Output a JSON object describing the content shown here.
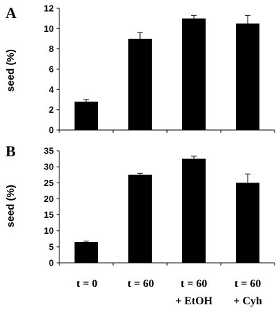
{
  "panels": [
    {
      "letter": "A",
      "ylabel": "seed (%)"
    },
    {
      "letter": "B",
      "ylabel": "seed (%)"
    }
  ],
  "categories": [
    {
      "line1": "t = 0",
      "line2": ""
    },
    {
      "line1": "t = 60",
      "line2": ""
    },
    {
      "line1": "t = 60",
      "line2": "+ EtOH"
    },
    {
      "line1": "t = 60",
      "line2": "+ Cyh"
    }
  ],
  "colors": {
    "bar": "#000000",
    "axis": "#000000",
    "background": "#ffffff"
  },
  "chart_data": [
    {
      "type": "bar",
      "panel": "A",
      "categories": [
        "t = 0",
        "t = 60",
        "t = 60 + EtOH",
        "t = 60 + Cyh"
      ],
      "values": [
        2.8,
        9.0,
        11.0,
        10.5
      ],
      "errors": [
        0.2,
        0.6,
        0.3,
        0.8
      ],
      "ylabel": "seed (%)",
      "xlabel": "",
      "ylim": [
        0,
        12
      ],
      "yticks": [
        0,
        2,
        4,
        6,
        8,
        10,
        12
      ],
      "grid": false,
      "legend": "none"
    },
    {
      "type": "bar",
      "panel": "B",
      "categories": [
        "t = 0",
        "t = 60",
        "t = 60 + EtOH",
        "t = 60 + Cyh"
      ],
      "values": [
        6.5,
        27.5,
        32.5,
        25.0
      ],
      "errors": [
        0.3,
        0.5,
        0.8,
        2.7
      ],
      "ylabel": "seed (%)",
      "xlabel": "",
      "ylim": [
        0,
        35
      ],
      "yticks": [
        0,
        5,
        10,
        15,
        20,
        25,
        30,
        35
      ],
      "grid": false,
      "legend": "none"
    }
  ]
}
